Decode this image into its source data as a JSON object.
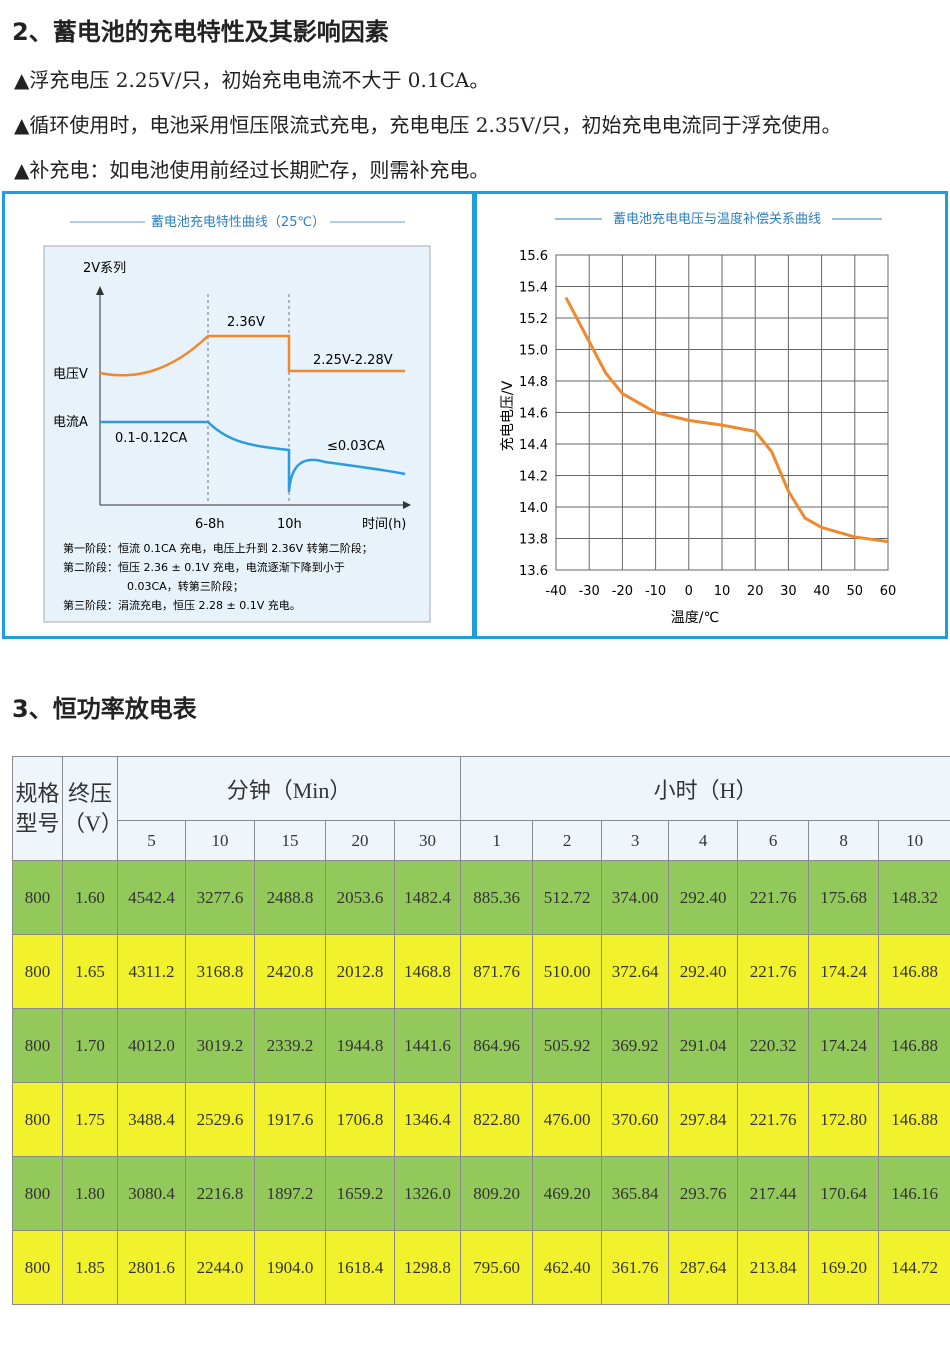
{
  "section2": {
    "title": "2、蓄电池的充电特性及其影响因素",
    "bullets": [
      "▲浮充电压 2.25V/只，初始充电电流不大于 0.1CA。",
      "▲循环使用时，电池采用恒压限流式充电，充电电压 2.35V/只，初始充电电流同于浮充使用。",
      "▲补充电：如电池使用前经过长期贮存，则需补充电。"
    ]
  },
  "diagram": {
    "title": "蓄电池充电特性曲线（25℃）",
    "series_label": "2V系列",
    "voltage_label": "电压V",
    "current_label": "电流A",
    "labels": [
      "2.36V",
      "2.25V-2.28V",
      "0.1-0.12CA",
      "≤0.03CA"
    ],
    "x_labels": [
      "6-8h",
      "10h",
      "时间(h)"
    ],
    "notes": [
      "第一阶段：恒流 0.1CA 充电，电压上升到 2.36V 转第二阶段；",
      "第二阶段：恒压 2.36 ± 0.1V 充电，电流逐渐下降到小于",
      "0.03CA，转第三阶段；",
      "第三阶段：涓流充电，恒压 2.28 ± 0.1V 充电。"
    ]
  },
  "chart_data": {
    "type": "line",
    "title": "蓄电池充电电压与温度补偿关系曲线",
    "y_label": "充电电压/V",
    "x_label": "温度/℃",
    "x": [
      -37,
      -30,
      -25,
      -20,
      -10,
      0,
      10,
      20,
      25,
      30,
      35,
      40,
      50,
      60
    ],
    "values": [
      15.33,
      15.05,
      14.85,
      14.72,
      14.6,
      14.55,
      14.52,
      14.48,
      14.35,
      14.1,
      13.93,
      13.87,
      13.81,
      13.78
    ],
    "color": "#f0882c",
    "xlim": [
      -40,
      60
    ],
    "xticks": [
      -40,
      -30,
      -20,
      -10,
      0,
      10,
      20,
      30,
      40,
      50,
      60
    ],
    "ylim": [
      13.6,
      15.6
    ],
    "yticks": [
      13.6,
      13.8,
      {
        "value": 14,
        "label": "14.0"
      },
      14.2,
      14.4,
      14.6,
      14.8,
      {
        "value": 15,
        "label": "15.0"
      },
      15.2,
      15.4,
      15.6
    ],
    "grid": true
  },
  "section3": {
    "title": "3、恒功率放电表"
  },
  "table": {
    "header": {
      "model": "规格型号",
      "voltage": "终压（V）",
      "minutes": "分钟（Min）",
      "hours": "小时（H）",
      "minute_cols": [
        "5",
        "10",
        "15",
        "20",
        "30"
      ],
      "hour_cols": [
        "1",
        "2",
        "3",
        "4",
        "6",
        "8",
        "10"
      ]
    },
    "rows": [
      [
        "800",
        "1.60",
        "4542.4",
        "3277.6",
        "2488.8",
        "2053.6",
        "1482.4",
        "885.36",
        "512.72",
        "374.00",
        "292.40",
        "221.76",
        "175.68",
        "148.32"
      ],
      [
        "800",
        "1.65",
        "4311.2",
        "3168.8",
        "2420.8",
        "2012.8",
        "1468.8",
        "871.76",
        "510.00",
        "372.64",
        "292.40",
        "221.76",
        "174.24",
        "146.88"
      ],
      [
        "800",
        "1.70",
        "4012.0",
        "3019.2",
        "2339.2",
        "1944.8",
        "1441.6",
        "864.96",
        "505.92",
        "369.92",
        "291.04",
        "220.32",
        "174.24",
        "146.88"
      ],
      [
        "800",
        "1.75",
        "3488.4",
        "2529.6",
        "1917.6",
        "1706.8",
        "1346.4",
        "822.80",
        "476.00",
        "370.60",
        "297.84",
        "221.76",
        "172.80",
        "146.88"
      ],
      [
        "800",
        "1.80",
        "3080.4",
        "2216.8",
        "1897.2",
        "1659.2",
        "1326.0",
        "809.20",
        "469.20",
        "365.84",
        "293.76",
        "217.44",
        "170.64",
        "146.16"
      ],
      [
        "800",
        "1.85",
        "2801.6",
        "2244.0",
        "1904.0",
        "1618.4",
        "1298.8",
        "795.60",
        "462.40",
        "361.76",
        "287.64",
        "213.84",
        "169.20",
        "144.72"
      ]
    ]
  }
}
